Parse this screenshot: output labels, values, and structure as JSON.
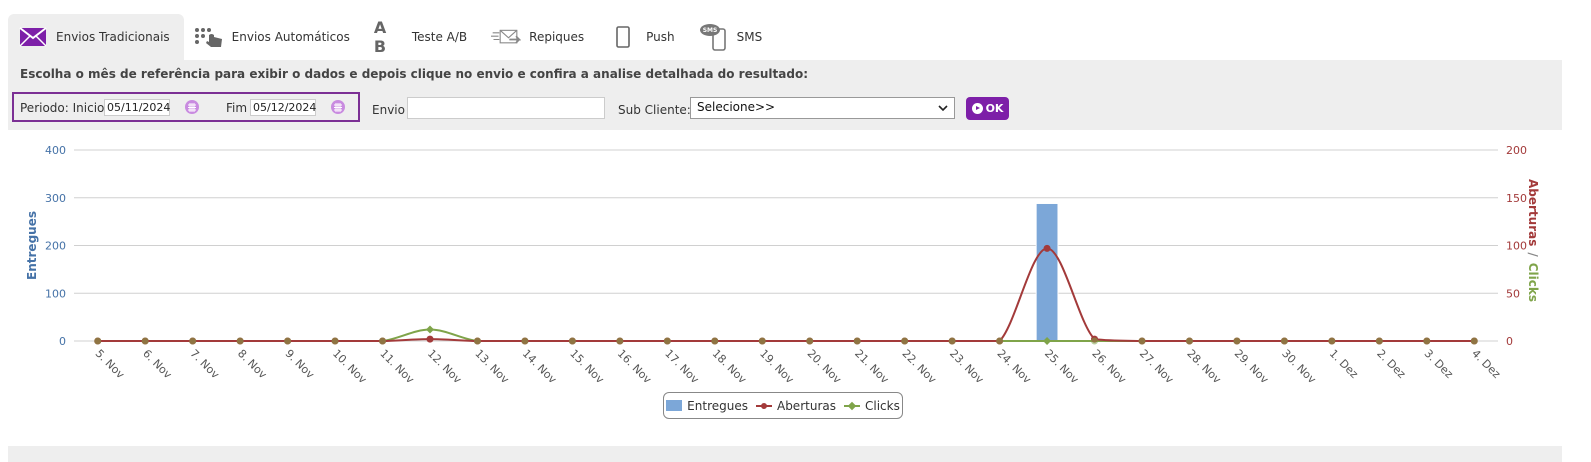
{
  "tabs": [
    {
      "label": "Envios Tradicionais",
      "icon": "envelope-icon",
      "active": true
    },
    {
      "label": "Envios Automáticos",
      "icon": "hand-pointer-icon",
      "active": false
    },
    {
      "label": "Teste A/B",
      "icon": "ab-test-icon",
      "icon_text": "A B",
      "active": false
    },
    {
      "label": "Repiques",
      "icon": "mail-forward-icon",
      "active": false
    },
    {
      "label": "Push",
      "icon": "mobile-icon",
      "active": false
    },
    {
      "label": "SMS",
      "icon": "sms-phone-icon",
      "icon_text": "SMS",
      "active": false
    }
  ],
  "instructions": "Escolha o mês de referência para exibir o dados e depois clique no envio e confira a analise detalhada do resultado:",
  "filters": {
    "period_label": "Periodo: Inicio",
    "start_date": "05/11/2024",
    "end_label": "Fim",
    "end_date": "05/12/2024",
    "envio_label": "Envio",
    "envio_value": "",
    "subclient_label": "Sub Cliente:",
    "subclient_selected": "Selecione>>",
    "ok_label": "OK"
  },
  "colors": {
    "accent": "#7d1fa8",
    "entregues": "#7ca7d8",
    "aberturas": "#a33a3a",
    "clicks": "#7fa44a",
    "left_axis": "#4572a7"
  },
  "chart_data": {
    "type": "bar+line",
    "categories": [
      "5. Nov",
      "6. Nov",
      "7. Nov",
      "8. Nov",
      "9. Nov",
      "10. Nov",
      "11. Nov",
      "12. Nov",
      "13. Nov",
      "14. Nov",
      "15. Nov",
      "16. Nov",
      "17. Nov",
      "18. Nov",
      "19. Nov",
      "20. Nov",
      "21. Nov",
      "22. Nov",
      "23. Nov",
      "24. Nov",
      "25. Nov",
      "26. Nov",
      "27. Nov",
      "28. Nov",
      "29. Nov",
      "30. Nov",
      "1. Dez",
      "2. Dez",
      "3. Dez",
      "4. Dez"
    ],
    "y_left": {
      "label": "Entregues",
      "ticks": [
        "0",
        "100",
        "200",
        "300",
        "400"
      ],
      "range": [
        0,
        400
      ]
    },
    "y_right": {
      "label_a": "Aberturas",
      "separator": "/",
      "label_b": "Clicks",
      "ticks": [
        "0",
        "50",
        "100",
        "150",
        "200"
      ],
      "range": [
        0,
        200
      ]
    },
    "series": [
      {
        "name": "Entregues",
        "kind": "bar",
        "axis": "left",
        "values": [
          0,
          0,
          0,
          0,
          0,
          0,
          0,
          0,
          0,
          0,
          0,
          0,
          0,
          0,
          0,
          0,
          0,
          0,
          0,
          0,
          288,
          0,
          0,
          0,
          0,
          0,
          0,
          0,
          0,
          0
        ]
      },
      {
        "name": "Aberturas",
        "kind": "spline",
        "axis": "right",
        "values": [
          0,
          0,
          0,
          0,
          0,
          0,
          0,
          2,
          0,
          0,
          0,
          0,
          0,
          0,
          0,
          0,
          0,
          0,
          0,
          0,
          97,
          2,
          0,
          0,
          0,
          0,
          0,
          0,
          0,
          0
        ]
      },
      {
        "name": "Clicks",
        "kind": "spline",
        "axis": "right",
        "values": [
          0,
          0,
          0,
          0,
          0,
          0,
          0,
          12,
          0,
          0,
          0,
          0,
          0,
          0,
          0,
          0,
          0,
          0,
          0,
          0,
          0,
          0,
          0,
          0,
          0,
          0,
          0,
          0,
          0,
          0
        ]
      }
    ],
    "legend_position": "bottom-center",
    "grid": true
  }
}
